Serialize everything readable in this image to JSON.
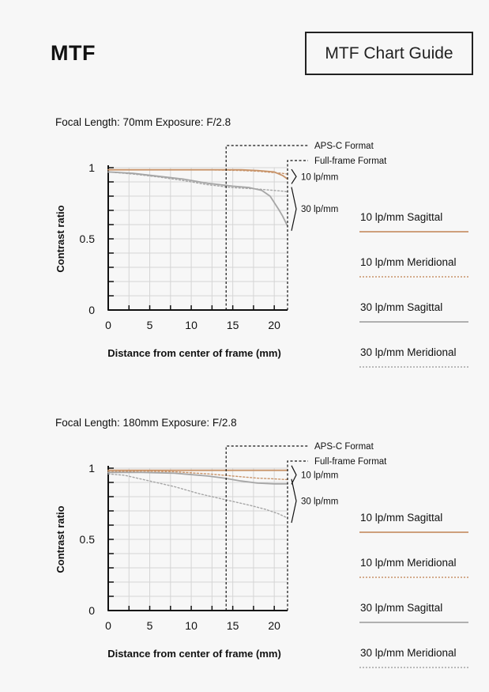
{
  "header": {
    "title": "MTF",
    "guide_button_label": "MTF Chart Guide"
  },
  "legend_items": [
    {
      "label": "10 lp/mm Sagittal",
      "color": "#c8946a",
      "style": "solid"
    },
    {
      "label": "10 lp/mm Meridional",
      "color": "#c8946a",
      "style": "dotted"
    },
    {
      "label": "30 lp/mm Sagittal",
      "color": "#a6a6a6",
      "style": "solid"
    },
    {
      "label": "30 lp/mm Meridional",
      "color": "#a6a6a6",
      "style": "dotted"
    }
  ],
  "annotations": {
    "apsc": "APS-C Format",
    "fullframe": "Full-frame Format",
    "lp10": "10 lp/mm",
    "lp30": "30 lp/mm"
  },
  "chart_data": [
    {
      "type": "line",
      "heading": "Focal Length: 70mm   Exposure: F/2.8",
      "xlabel": "Distance from center of frame (mm)",
      "ylabel": "Contrast ratio",
      "xlim": [
        0,
        21.6
      ],
      "ylim": [
        0,
        1
      ],
      "xticks": [
        0,
        5,
        10,
        15,
        20
      ],
      "xtick_labels": [
        "0",
        "5",
        "10",
        "15",
        "20"
      ],
      "yticks": [
        0,
        0.5,
        1
      ],
      "ytick_labels": [
        "0",
        "0.5",
        "1"
      ],
      "apsc_limit": 14.2,
      "fullframe_limit": 21.6,
      "series": [
        {
          "name": "10 lp/mm Sagittal",
          "x": [
            0,
            4,
            8,
            12,
            16,
            18,
            20,
            21,
            21.6
          ],
          "y": [
            0.985,
            0.985,
            0.985,
            0.985,
            0.985,
            0.98,
            0.97,
            0.945,
            0.92
          ]
        },
        {
          "name": "10 lp/mm Meridional",
          "x": [
            0,
            4,
            8,
            12,
            16,
            18,
            20,
            21,
            21.6
          ],
          "y": [
            0.985,
            0.985,
            0.985,
            0.985,
            0.98,
            0.975,
            0.965,
            0.96,
            0.955
          ]
        },
        {
          "name": "30 lp/mm Sagittal",
          "x": [
            0,
            3,
            6,
            9,
            12,
            15,
            17,
            18.5,
            19.5,
            20.5,
            21,
            21.6
          ],
          "y": [
            0.97,
            0.96,
            0.94,
            0.92,
            0.89,
            0.87,
            0.86,
            0.84,
            0.8,
            0.71,
            0.66,
            0.59
          ]
        },
        {
          "name": "30 lp/mm Meridional",
          "x": [
            0,
            3,
            6,
            9,
            12,
            15,
            18,
            20,
            21,
            21.6
          ],
          "y": [
            0.97,
            0.955,
            0.935,
            0.91,
            0.88,
            0.86,
            0.85,
            0.84,
            0.835,
            0.83
          ]
        }
      ]
    },
    {
      "type": "line",
      "heading": "Focal Length: 180mm   Exposure: F/2.8",
      "xlabel": "Distance from center of frame (mm)",
      "ylabel": "Contrast ratio",
      "xlim": [
        0,
        21.6
      ],
      "ylim": [
        0,
        1
      ],
      "xticks": [
        0,
        5,
        10,
        15,
        20
      ],
      "xtick_labels": [
        "0",
        "5",
        "10",
        "15",
        "20"
      ],
      "yticks": [
        0,
        0.5,
        1
      ],
      "ytick_labels": [
        "0",
        "0.5",
        "1"
      ],
      "apsc_limit": 14.2,
      "fullframe_limit": 21.6,
      "series": [
        {
          "name": "10 lp/mm Sagittal",
          "x": [
            0,
            5,
            10,
            15,
            20,
            21.6
          ],
          "y": [
            0.985,
            0.985,
            0.985,
            0.985,
            0.985,
            0.985
          ]
        },
        {
          "name": "10 lp/mm Meridional",
          "x": [
            0,
            4,
            8,
            12,
            15,
            18,
            20,
            21.6
          ],
          "y": [
            0.975,
            0.98,
            0.975,
            0.96,
            0.945,
            0.93,
            0.925,
            0.92
          ]
        },
        {
          "name": "30 lp/mm Sagittal",
          "x": [
            0,
            4,
            8,
            12,
            14,
            16,
            18,
            20,
            21.6
          ],
          "y": [
            0.97,
            0.97,
            0.965,
            0.945,
            0.93,
            0.91,
            0.895,
            0.89,
            0.89
          ]
        },
        {
          "name": "30 lp/mm Meridional",
          "x": [
            0,
            2,
            5,
            8,
            11,
            14,
            17,
            19,
            20.5,
            21.6
          ],
          "y": [
            0.96,
            0.95,
            0.91,
            0.87,
            0.82,
            0.78,
            0.74,
            0.71,
            0.68,
            0.65
          ]
        }
      ]
    }
  ]
}
